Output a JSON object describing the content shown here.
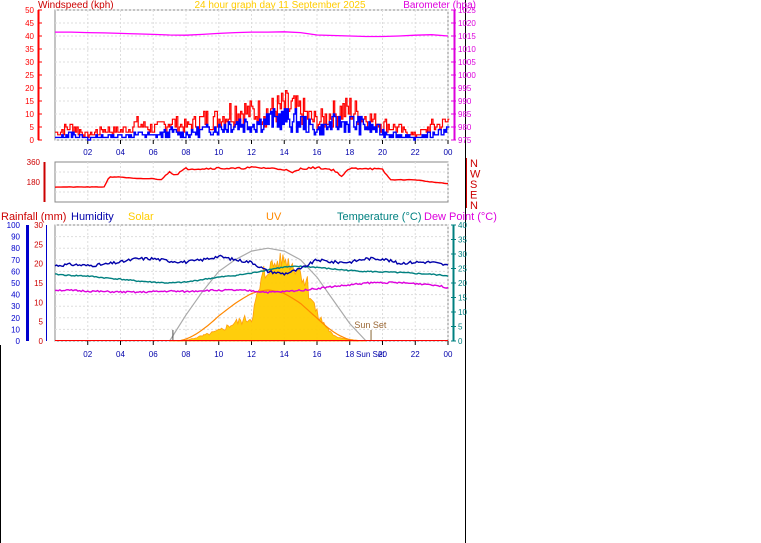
{
  "title": "24 hour graph day   11 September 2025",
  "x_ticks": [
    "02",
    "04",
    "06",
    "08",
    "10",
    "12",
    "14",
    "16",
    "18",
    "20",
    "22",
    "00"
  ],
  "colors": {
    "wind_speed": "#ff0000",
    "wind_gust": "#ff0000",
    "wind_avg": "#0000ff",
    "barometer": "#ff00ff",
    "direction": "#ff0000",
    "rainfall": "#ff0000",
    "humidity": "#0000aa",
    "solar": "#ffcc00",
    "uv": "#ff8800",
    "temperature": "#008080",
    "dewpoint": "#dd00dd",
    "axis_wind": "#ff0000",
    "axis_baro": "#dd00dd",
    "axis_dir": "#cc0000",
    "axis_hum": "#0000cc",
    "axis_temp": "#008080",
    "tick": "#0000aa",
    "grid": "#dddddd"
  },
  "chart_data": [
    {
      "type": "line",
      "panel": "wind-barometer",
      "title": "24 hour graph day   11 September 2025",
      "ylabel": "Windspeed (kph)",
      "y2label": "Barometer (hpa)",
      "ylim": [
        0,
        50
      ],
      "y2lim": [
        975,
        1025
      ],
      "y_ticks": [
        0,
        5,
        10,
        15,
        20,
        25,
        30,
        35,
        40,
        45,
        50
      ],
      "y2_ticks": [
        975,
        980,
        985,
        990,
        995,
        1000,
        1005,
        1010,
        1015,
        1020,
        1025
      ],
      "x_hours": [
        0,
        1,
        2,
        3,
        4,
        5,
        6,
        7,
        8,
        9,
        10,
        11,
        12,
        13,
        14,
        15,
        16,
        17,
        18,
        19,
        20,
        21,
        22,
        23,
        24
      ],
      "series": [
        {
          "key": "gust",
          "values": [
            3,
            6,
            2,
            5,
            4,
            7,
            5,
            8,
            6,
            9,
            10,
            14,
            12,
            13,
            15,
            13,
            8,
            12,
            14,
            10,
            7,
            5,
            2,
            6,
            8
          ]
        },
        {
          "key": "avg",
          "values": [
            1,
            3,
            1,
            2,
            2,
            3,
            2,
            4,
            3,
            5,
            6,
            9,
            8,
            10,
            11,
            9,
            5,
            8,
            9,
            7,
            4,
            2,
            1,
            3,
            5
          ]
        },
        {
          "key": "barometer",
          "values": [
            1016.5,
            1016.5,
            1016.3,
            1016.2,
            1016.0,
            1015.8,
            1015.6,
            1015.4,
            1015.3,
            1015.6,
            1016.0,
            1016.3,
            1016.5,
            1016.5,
            1016.6,
            1016.3,
            1015.4,
            1015.2,
            1015.0,
            1014.8,
            1014.8,
            1015.0,
            1015.3,
            1015.5,
            1015.0
          ]
        }
      ]
    },
    {
      "type": "line",
      "panel": "wind-direction",
      "ylim": [
        0,
        360
      ],
      "y_ticks": [
        180,
        360
      ],
      "compass_labels": [
        "N",
        "W",
        "S",
        "E",
        "N"
      ],
      "x_hours": [
        0,
        1,
        2,
        3,
        3.3,
        4,
        5,
        6,
        6.5,
        7,
        7.3,
        8,
        9,
        10,
        11,
        12,
        13,
        14,
        14.5,
        15,
        16,
        17,
        17.5,
        18,
        19,
        20,
        20.5,
        21,
        22,
        23,
        24
      ],
      "series": [
        {
          "key": "direction",
          "values": [
            135,
            135,
            135,
            135,
            225,
            225,
            210,
            210,
            200,
            280,
            240,
            300,
            300,
            305,
            300,
            310,
            305,
            295,
            260,
            300,
            310,
            290,
            230,
            300,
            305,
            290,
            200,
            200,
            200,
            180,
            165
          ]
        }
      ]
    },
    {
      "type": "line",
      "panel": "temperature-humidity-solar",
      "legend": [
        "Rainfall (mm)",
        "Humidity",
        "Solar",
        "UV",
        "Temperature (°C)",
        "Dew Point (°C)"
      ],
      "hum_ylim": [
        0,
        100
      ],
      "hum_ticks": [
        0,
        10,
        20,
        30,
        40,
        50,
        60,
        70,
        80,
        90,
        100
      ],
      "rain_ylim": [
        0,
        30
      ],
      "rain_ticks": [
        0,
        5,
        10,
        15,
        20,
        25,
        30
      ],
      "temp_ylim": [
        0,
        40
      ],
      "temp_ticks": [
        0,
        5,
        10,
        15,
        20,
        25,
        30,
        35,
        40
      ],
      "sunset_label": "Sun Set",
      "sunset_axis_label": "Sun Set",
      "x_hours": [
        0,
        1,
        2,
        3,
        4,
        5,
        6,
        7,
        8,
        9,
        10,
        11,
        12,
        13,
        14,
        15,
        16,
        17,
        18,
        19,
        20,
        21,
        22,
        23,
        24
      ],
      "series": [
        {
          "key": "humidity",
          "values": [
            65,
            66,
            65,
            66,
            68,
            71,
            71,
            69,
            68,
            70,
            73,
            70,
            68,
            60,
            58,
            62,
            70,
            68,
            68,
            71,
            71,
            67,
            68,
            68,
            65
          ]
        },
        {
          "key": "temperature",
          "values": [
            23,
            22.6,
            22.4,
            21.8,
            21.3,
            20.7,
            20.3,
            20.0,
            20.3,
            21.2,
            22.0,
            22.6,
            23.4,
            24.6,
            25.5,
            25.7,
            25.4,
            24.8,
            24.3,
            24.0,
            23.8,
            23.6,
            23.3,
            23.0,
            22.5
          ]
        },
        {
          "key": "dewpoint",
          "values": [
            17.6,
            17.4,
            17.2,
            17.0,
            16.9,
            16.8,
            17.0,
            17.2,
            17.0,
            17.4,
            17.5,
            17.5,
            17.3,
            16.8,
            17.0,
            17.5,
            18.1,
            18.8,
            19.3,
            20.0,
            20.2,
            20.1,
            19.8,
            19.5,
            18.4
          ]
        },
        {
          "key": "solar",
          "values": [
            0,
            0,
            0,
            0,
            0,
            0,
            0,
            0,
            2,
            15,
            30,
            55,
            70,
            240,
            270,
            230,
            80,
            15,
            4,
            0,
            0,
            0,
            0,
            0,
            0
          ]
        },
        {
          "key": "solar_theoretical",
          "values": [
            0,
            0,
            0,
            0,
            0,
            0,
            0,
            0,
            90,
            170,
            240,
            280,
            310,
            320,
            310,
            280,
            220,
            140,
            60,
            0,
            0,
            0,
            0,
            0,
            0
          ]
        }
      ]
    }
  ]
}
